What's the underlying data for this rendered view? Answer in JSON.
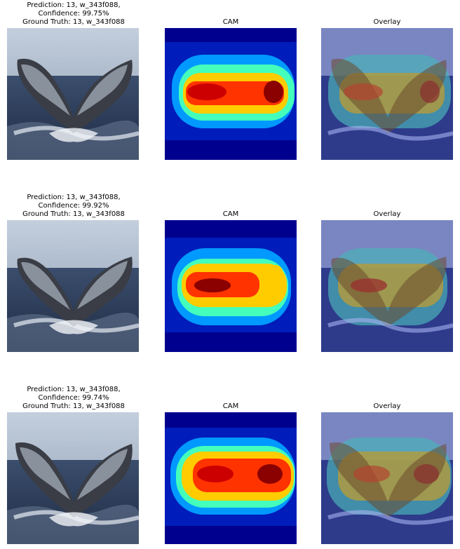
{
  "rows": [
    {
      "prediction": "Prediction: 13, w_343f088,",
      "confidence": "Confidence: 99.75%",
      "ground_truth": "Ground Truth: 13, w_343f088",
      "cam_title": "CAM",
      "overlay_title": "Overlay"
    },
    {
      "prediction": "Prediction: 13, w_343f088,",
      "confidence": "Confidence: 99.92%",
      "ground_truth": "Ground Truth: 13, w_343f088",
      "cam_title": "CAM",
      "overlay_title": "Overlay"
    },
    {
      "prediction": "Prediction: 13, w_343f088,",
      "confidence": "Confidence: 99.74%",
      "ground_truth": "Ground Truth: 13, w_343f088",
      "cam_title": "CAM",
      "overlay_title": "Overlay"
    }
  ],
  "colors": {
    "sky": "#b9c6d6",
    "sea": "#2b3c57",
    "tail": "#3a3d45",
    "cam_low": "#00008f",
    "cam_high": "#8b0000"
  }
}
